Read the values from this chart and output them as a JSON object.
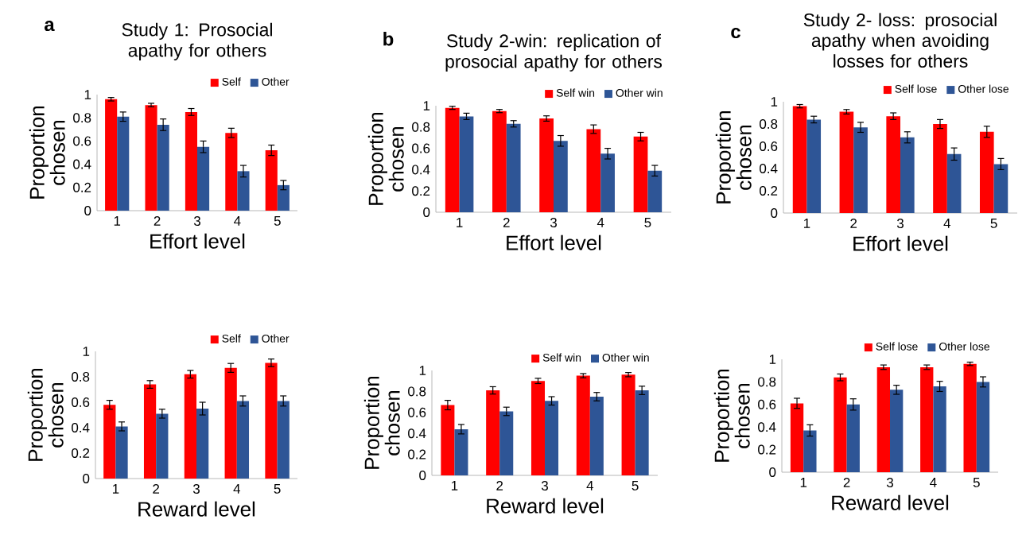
{
  "chart_data": [
    {
      "type": "bar",
      "title": "Study 1: Prosocial apathy for others",
      "annotations": [
        "a"
      ],
      "xlabel": "Effort level",
      "ylabel": "Proportion chosen",
      "categories": [
        "1",
        "2",
        "3",
        "4",
        "5"
      ],
      "ylim": [
        0,
        1
      ],
      "yticks": [
        0,
        0.2,
        0.4,
        0.6,
        0.8,
        1
      ],
      "legend": "top right",
      "series": [
        {
          "name": "Self",
          "color": "#ff0000",
          "values": [
            0.96,
            0.91,
            0.85,
            0.67,
            0.52
          ],
          "errors": [
            0.015,
            0.015,
            0.03,
            0.04,
            0.045
          ]
        },
        {
          "name": "Other",
          "color": "#2e5596",
          "values": [
            0.81,
            0.74,
            0.55,
            0.34,
            0.22
          ],
          "errors": [
            0.04,
            0.05,
            0.05,
            0.05,
            0.04
          ]
        }
      ]
    },
    {
      "type": "bar",
      "title": "Study 2-win: replication of prosocial apathy for others",
      "annotations": [
        "b"
      ],
      "xlabel": "Effort level",
      "ylabel": "Proportion chosen",
      "categories": [
        "1",
        "2",
        "3",
        "4",
        "5"
      ],
      "ylim": [
        0,
        1
      ],
      "yticks": [
        0,
        0.2,
        0.4,
        0.6,
        0.8,
        1
      ],
      "legend": "top right",
      "series": [
        {
          "name": "Self win",
          "color": "#ff0000",
          "values": [
            0.98,
            0.95,
            0.88,
            0.78,
            0.71
          ],
          "errors": [
            0.015,
            0.015,
            0.025,
            0.04,
            0.04
          ]
        },
        {
          "name": "Other win",
          "color": "#2e5596",
          "values": [
            0.9,
            0.83,
            0.67,
            0.55,
            0.39
          ],
          "errors": [
            0.03,
            0.03,
            0.05,
            0.05,
            0.05
          ]
        }
      ]
    },
    {
      "type": "bar",
      "title": "Study 2- loss: prosocial apathy when avoiding losses for others",
      "annotations": [
        "c"
      ],
      "xlabel": "Effort level",
      "ylabel": "Proportion chosen",
      "categories": [
        "1",
        "2",
        "3",
        "4",
        "5"
      ],
      "ylim": [
        0,
        1
      ],
      "yticks": [
        0,
        0.2,
        0.4,
        0.6,
        0.8,
        1
      ],
      "legend": "top right",
      "series": [
        {
          "name": "Self lose",
          "color": "#ff0000",
          "values": [
            0.96,
            0.91,
            0.87,
            0.8,
            0.73
          ],
          "errors": [
            0.015,
            0.02,
            0.03,
            0.04,
            0.05
          ]
        },
        {
          "name": "Other lose",
          "color": "#2e5596",
          "values": [
            0.84,
            0.77,
            0.68,
            0.53,
            0.44
          ],
          "errors": [
            0.03,
            0.045,
            0.05,
            0.055,
            0.05
          ]
        }
      ]
    },
    {
      "type": "bar",
      "xlabel": "Reward level",
      "ylabel": "Proportion chosen",
      "categories": [
        "1",
        "2",
        "3",
        "4",
        "5"
      ],
      "ylim": [
        0,
        1
      ],
      "yticks": [
        0,
        0.2,
        0.4,
        0.6,
        0.8,
        1
      ],
      "legend": "top right",
      "series": [
        {
          "name": "Self",
          "color": "#ff0000",
          "values": [
            0.58,
            0.74,
            0.82,
            0.87,
            0.91
          ],
          "errors": [
            0.035,
            0.03,
            0.03,
            0.035,
            0.03
          ]
        },
        {
          "name": "Other",
          "color": "#2e5596",
          "values": [
            0.41,
            0.51,
            0.55,
            0.61,
            0.61
          ],
          "errors": [
            0.035,
            0.035,
            0.05,
            0.04,
            0.04
          ]
        }
      ]
    },
    {
      "type": "bar",
      "xlabel": "Reward level",
      "ylabel": "Proportion chosen",
      "categories": [
        "1",
        "2",
        "3",
        "4",
        "5"
      ],
      "ylim": [
        0,
        1
      ],
      "yticks": [
        0,
        0.2,
        0.4,
        0.6,
        0.8,
        1
      ],
      "legend": "top right",
      "series": [
        {
          "name": "Self win",
          "color": "#ff0000",
          "values": [
            0.67,
            0.81,
            0.9,
            0.95,
            0.96
          ],
          "errors": [
            0.045,
            0.035,
            0.025,
            0.02,
            0.02
          ]
        },
        {
          "name": "Other win",
          "color": "#2e5596",
          "values": [
            0.44,
            0.61,
            0.71,
            0.75,
            0.81
          ],
          "errors": [
            0.045,
            0.04,
            0.04,
            0.04,
            0.04
          ]
        }
      ]
    },
    {
      "type": "bar",
      "xlabel": "Reward level",
      "ylabel": "Proportion chosen",
      "categories": [
        "1",
        "2",
        "3",
        "4",
        "5"
      ],
      "ylim": [
        0,
        1
      ],
      "yticks": [
        0,
        0.2,
        0.4,
        0.6,
        0.8,
        1
      ],
      "legend": "top right",
      "series": [
        {
          "name": "Self lose",
          "color": "#ff0000",
          "values": [
            0.61,
            0.84,
            0.93,
            0.93,
            0.96
          ],
          "errors": [
            0.045,
            0.03,
            0.02,
            0.02,
            0.015
          ]
        },
        {
          "name": "Other lose",
          "color": "#2e5596",
          "values": [
            0.37,
            0.6,
            0.73,
            0.76,
            0.8
          ],
          "errors": [
            0.05,
            0.05,
            0.04,
            0.045,
            0.045
          ]
        }
      ]
    }
  ]
}
